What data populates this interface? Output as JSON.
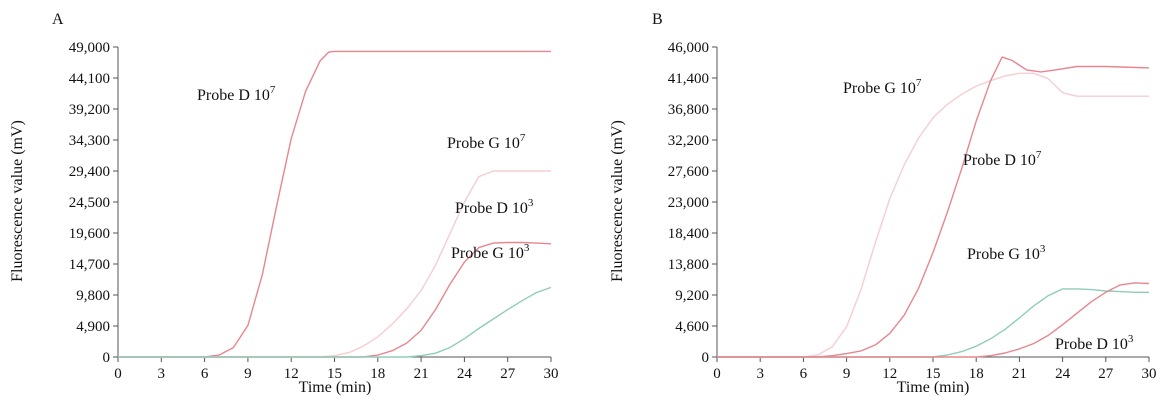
{
  "chart_data": [
    {
      "type": "line",
      "panel_label": "A",
      "xlabel": "Time (min)",
      "ylabel": "Fluorescence value (mV)",
      "xlim": [
        0,
        30
      ],
      "ylim": [
        0,
        49000
      ],
      "xticks": [
        0,
        3,
        6,
        9,
        12,
        15,
        18,
        21,
        24,
        27,
        30
      ],
      "xtick_labels": [
        "0",
        "3",
        "6",
        "9",
        "12",
        "15",
        "18",
        "21",
        "24",
        "27",
        "30"
      ],
      "yticks": [
        0,
        4900,
        9800,
        14700,
        19600,
        24500,
        29400,
        34300,
        39200,
        44100,
        49000
      ],
      "ytick_labels": [
        "0",
        "4,900",
        "9,800",
        "14,700",
        "19,600",
        "24,500",
        "29,400",
        "34,300",
        "39,200",
        "44,100",
        "49,000"
      ],
      "grid": false,
      "series": [
        {
          "name": "Probe D 10^7",
          "color": "#e7868f",
          "x": [
            0,
            6,
            7,
            8,
            9,
            10,
            11,
            12,
            13,
            14,
            14.6,
            15,
            18,
            21,
            24,
            27,
            30
          ],
          "y": [
            0,
            0,
            300,
            1500,
            5000,
            13000,
            24000,
            34500,
            42000,
            46800,
            48200,
            48300,
            48300,
            48300,
            48300,
            48300,
            48300
          ]
        },
        {
          "name": "Probe G 10^7",
          "color": "#f6cdd1",
          "x": [
            0,
            14,
            15,
            16,
            17,
            18,
            19,
            20,
            21,
            22,
            23,
            24,
            25,
            26,
            27,
            28,
            30
          ],
          "y": [
            0,
            0,
            200,
            700,
            1700,
            3200,
            5200,
            7600,
            10500,
            14500,
            19500,
            24500,
            28500,
            29400,
            29400,
            29400,
            29400
          ]
        },
        {
          "name": "Probe D 10^3",
          "color": "#e7868f",
          "x": [
            0,
            17,
            18,
            19,
            20,
            21,
            22,
            23,
            24,
            25,
            26,
            27,
            28,
            29,
            30
          ],
          "y": [
            0,
            0,
            300,
            1000,
            2200,
            4200,
            7500,
            11500,
            15000,
            17300,
            18000,
            18100,
            18100,
            18000,
            17900
          ]
        },
        {
          "name": "Probe G 10^3",
          "color": "#8fcdb8",
          "x": [
            0,
            20,
            21,
            22,
            23,
            24,
            25,
            26,
            27,
            28,
            29,
            30
          ],
          "y": [
            0,
            0,
            200,
            600,
            1500,
            2900,
            4500,
            6000,
            7500,
            8900,
            10200,
            11000
          ]
        }
      ],
      "annotations": [
        {
          "base": "Probe D 10",
          "sup": "7"
        },
        {
          "base": "Probe G 10",
          "sup": "7"
        },
        {
          "base": "Probe D 10",
          "sup": "3"
        },
        {
          "base": "Probe G 10",
          "sup": "3"
        }
      ]
    },
    {
      "type": "line",
      "panel_label": "B",
      "xlabel": "Time (min)",
      "ylabel": "Fluorescence value (mV)",
      "xlim": [
        0,
        30
      ],
      "ylim": [
        0,
        46000
      ],
      "xticks": [
        0,
        3,
        6,
        9,
        12,
        15,
        18,
        21,
        24,
        27,
        30
      ],
      "xtick_labels": [
        "0",
        "3",
        "6",
        "9",
        "12",
        "15",
        "18",
        "21",
        "24",
        "27",
        "30"
      ],
      "yticks": [
        0,
        4600,
        9200,
        13800,
        18400,
        23000,
        27600,
        32200,
        36800,
        41400,
        46000
      ],
      "ytick_labels": [
        "0",
        "4,600",
        "9,200",
        "13,800",
        "18,400",
        "23,000",
        "27,600",
        "32,200",
        "36,800",
        "41,400",
        "46,000"
      ],
      "grid": false,
      "series": [
        {
          "name": "Probe G 10^7",
          "color": "#f6cdd1",
          "x": [
            0,
            6,
            7,
            8,
            9,
            10,
            11,
            12,
            13,
            14,
            15,
            16,
            17,
            18,
            19,
            20,
            21,
            22,
            23,
            24,
            25,
            27,
            30
          ],
          "y": [
            0,
            0,
            300,
            1500,
            4500,
            10000,
            17000,
            23500,
            28500,
            32500,
            35500,
            37500,
            39000,
            40200,
            41000,
            41700,
            42100,
            42100,
            41300,
            39200,
            38700,
            38700,
            38700
          ]
        },
        {
          "name": "Probe D 10^7",
          "color": "#e7868f",
          "x": [
            0,
            7,
            8,
            9,
            10,
            11,
            12,
            13,
            14,
            15,
            16,
            17,
            18,
            19,
            19.8,
            20.5,
            21.5,
            22.5,
            23.5,
            25,
            27,
            30
          ],
          "y": [
            0,
            0,
            200,
            500,
            900,
            1800,
            3500,
            6200,
            10200,
            15500,
            21500,
            28000,
            35000,
            41000,
            44500,
            44000,
            42600,
            42300,
            42600,
            43100,
            43100,
            42900
          ]
        },
        {
          "name": "Probe G 10^3",
          "color": "#8fcdb8",
          "x": [
            0,
            15,
            16,
            17,
            18,
            19,
            20,
            21,
            22,
            23,
            24,
            25,
            26,
            27,
            28,
            29,
            30
          ],
          "y": [
            0,
            0,
            300,
            800,
            1600,
            2700,
            4100,
            5800,
            7600,
            9100,
            10100,
            10100,
            10000,
            9800,
            9700,
            9600,
            9600
          ]
        },
        {
          "name": "Probe D 10^3",
          "color": "#e7868f",
          "x": [
            0,
            18,
            19,
            20,
            21,
            22,
            23,
            24,
            25,
            26,
            27,
            28,
            29,
            30
          ],
          "y": [
            0,
            0,
            200,
            600,
            1200,
            2000,
            3200,
            4800,
            6500,
            8200,
            9600,
            10700,
            11000,
            10900
          ]
        }
      ],
      "annotations": [
        {
          "base": "Probe G 10",
          "sup": "7"
        },
        {
          "base": "Probe D 10",
          "sup": "7"
        },
        {
          "base": "Probe G 10",
          "sup": "3"
        },
        {
          "base": "Probe D 10",
          "sup": "3"
        }
      ]
    }
  ]
}
